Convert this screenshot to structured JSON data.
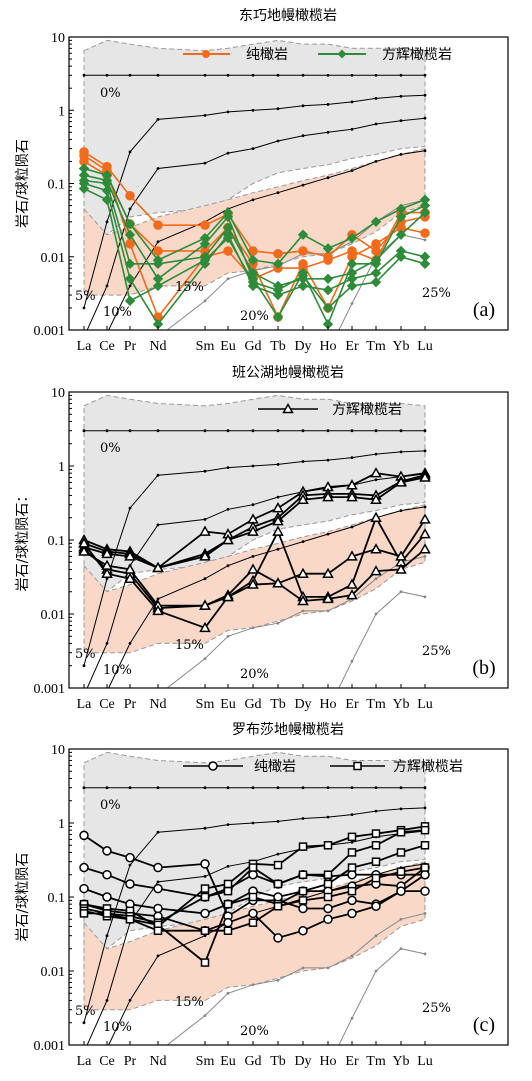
{
  "figure": {
    "elements": [
      "La",
      "Ce",
      "Pr",
      "Nd",
      "Sm",
      "Eu",
      "Gd",
      "Tb",
      "Dy",
      "Ho",
      "Er",
      "Tm",
      "Yb",
      "Lu"
    ],
    "y_label": "岩石/球粒陨石",
    "y_label_b": "岩石/球粒陨石：",
    "melt_labels": [
      "0%",
      "5%",
      "10%",
      "15%",
      "20%",
      "25%"
    ],
    "colors": {
      "dunite_a": "#f26a1b",
      "harzburgite_a": "#2e8b3a",
      "pink_field": "#f9d8c8",
      "gray_field": "#e6e6e6"
    }
  },
  "chart_data": [
    {
      "type": "line",
      "title": "东巧地幔橄榄岩",
      "panel_label": "(a)",
      "log_y": true,
      "ylim": [
        0.001,
        10
      ],
      "y_ticks": [
        "0.001",
        "0.01",
        "0.1",
        "1",
        "10"
      ],
      "categories": [
        "La",
        "Ce",
        "Pr",
        "Nd",
        "Sm",
        "Eu",
        "Gd",
        "Tb",
        "Dy",
        "Ho",
        "Er",
        "Tm",
        "Yb",
        "Lu"
      ],
      "legend": [
        {
          "name": "纯橄岩",
          "marker": "circle-filled",
          "color": "#f26a1b"
        },
        {
          "name": "方辉橄榄岩",
          "marker": "diamond-filled",
          "color": "#2e8b3a"
        }
      ],
      "series": [
        {
          "group": "纯橄岩",
          "values": [
            0.27,
            0.17,
            0.068,
            0.027,
            0.027,
            0.038,
            0.012,
            0.011,
            0.012,
            0.01,
            0.02,
            0.012,
            0.03,
            0.035
          ]
        },
        {
          "group": "纯橄岩",
          "values": [
            0.2,
            0.13,
            0.028,
            0.012,
            0.012,
            0.025,
            0.008,
            0.0015,
            0.008,
            0.002,
            0.01,
            0.015,
            0.025,
            0.021
          ]
        },
        {
          "group": "纯橄岩",
          "values": [
            0.24,
            0.15,
            0.015,
            0.0015,
            0.01,
            0.012,
            0.005,
            0.007,
            0.007,
            0.009,
            0.012,
            0.009,
            0.04,
            0.04
          ]
        },
        {
          "group": "方辉橄榄岩",
          "values": [
            0.16,
            0.13,
            0.028,
            0.009,
            0.018,
            0.04,
            0.009,
            0.008,
            0.02,
            0.013,
            0.018,
            0.03,
            0.045,
            0.06
          ]
        },
        {
          "group": "方辉橄榄岩",
          "values": [
            0.13,
            0.11,
            0.02,
            0.005,
            0.015,
            0.035,
            0.005,
            0.0015,
            0.006,
            0.0012,
            0.008,
            0.008,
            0.035,
            0.05
          ]
        },
        {
          "group": "方辉橄榄岩",
          "values": [
            0.11,
            0.1,
            0.008,
            0.008,
            0.01,
            0.025,
            0.006,
            0.004,
            0.005,
            0.005,
            0.006,
            0.009,
            0.02,
            0.04
          ]
        },
        {
          "group": "方辉橄榄岩",
          "values": [
            0.1,
            0.08,
            0.005,
            0.0012,
            0.008,
            0.02,
            0.004,
            0.003,
            0.004,
            0.0035,
            0.005,
            0.006,
            0.012,
            0.01
          ]
        },
        {
          "group": "方辉橄榄岩",
          "values": [
            0.085,
            0.06,
            0.0025,
            0.004,
            0.009,
            0.018,
            0.0045,
            0.0035,
            0.0055,
            0.002,
            0.004,
            0.0045,
            0.01,
            0.008
          ]
        }
      ],
      "melt_curves_present": true
    },
    {
      "type": "line",
      "title": "班公湖地幔橄榄岩",
      "panel_label": "(b)",
      "log_y": true,
      "ylim": [
        0.001,
        10
      ],
      "y_ticks": [
        "0.001",
        "0.01",
        "0.1",
        "1",
        "10"
      ],
      "categories": [
        "La",
        "Ce",
        "Pr",
        "Nd",
        "Sm",
        "Eu",
        "Gd",
        "Tb",
        "Dy",
        "Ho",
        "Er",
        "Tm",
        "Yb",
        "Lu"
      ],
      "legend": [
        {
          "name": "方辉橄榄岩",
          "marker": "triangle-open",
          "color": "#000000"
        }
      ],
      "series": [
        {
          "values": [
            0.1,
            0.075,
            0.07,
            0.042,
            0.13,
            0.12,
            0.19,
            0.27,
            0.45,
            0.52,
            0.55,
            0.8,
            0.72,
            0.8
          ]
        },
        {
          "values": [
            0.09,
            0.07,
            0.065,
            0.042,
            0.065,
            0.1,
            0.15,
            0.2,
            0.4,
            0.42,
            0.42,
            0.4,
            0.62,
            0.75
          ]
        },
        {
          "values": [
            0.08,
            0.065,
            0.06,
            0.042,
            0.06,
            0.1,
            0.13,
            0.18,
            0.35,
            0.38,
            0.38,
            0.35,
            0.6,
            0.7
          ]
        },
        {
          "values": [
            0.075,
            0.04,
            0.035,
            0.012,
            0.013,
            0.017,
            0.028,
            0.13,
            0.017,
            0.017,
            0.025,
            0.2,
            0.05,
            0.12
          ]
        },
        {
          "values": [
            0.07,
            0.045,
            0.04,
            0.013,
            0.013,
            0.018,
            0.04,
            0.026,
            0.035,
            0.035,
            0.06,
            0.075,
            0.06,
            0.19
          ]
        },
        {
          "values": [
            0.09,
            0.035,
            0.03,
            0.011,
            0.0065,
            0.017,
            0.025,
            0.026,
            0.015,
            0.016,
            0.018,
            0.038,
            0.04,
            0.075
          ]
        }
      ],
      "melt_curves_present": true
    },
    {
      "type": "line",
      "title": "罗布莎地幔橄榄岩",
      "panel_label": "(c)",
      "log_y": true,
      "ylim": [
        0.001,
        10
      ],
      "y_ticks": [
        "0.001",
        "0.01",
        "0.1",
        "1",
        "10"
      ],
      "categories": [
        "La",
        "Ce",
        "Pr",
        "Nd",
        "Sm",
        "Eu",
        "Gd",
        "Tb",
        "Dy",
        "Ho",
        "Er",
        "Tm",
        "Yb",
        "Lu"
      ],
      "legend": [
        {
          "name": "纯橄岩",
          "marker": "circle-open",
          "color": "#000000"
        },
        {
          "name": "方辉橄榄岩",
          "marker": "square-open",
          "color": "#000000"
        }
      ],
      "series": [
        {
          "group": "纯橄岩",
          "values": [
            0.68,
            0.42,
            0.34,
            0.25,
            0.28,
            0.055,
            0.09,
            0.09,
            0.07,
            0.07,
            0.09,
            0.08,
            0.12,
            0.12
          ]
        },
        {
          "group": "纯橄岩",
          "values": [
            0.25,
            0.2,
            0.15,
            0.13,
            0.1,
            0.13,
            0.2,
            0.15,
            0.2,
            0.19,
            0.2,
            0.2,
            0.2,
            0.2
          ]
        },
        {
          "group": "纯橄岩",
          "values": [
            0.13,
            0.1,
            0.08,
            0.07,
            0.06,
            0.08,
            0.12,
            0.1,
            0.12,
            0.12,
            0.14,
            0.15,
            0.14,
            0.25
          ]
        },
        {
          "group": "纯橄岩",
          "values": [
            0.08,
            0.065,
            0.06,
            0.055,
            0.035,
            0.045,
            0.06,
            0.028,
            0.035,
            0.05,
            0.06,
            0.075,
            0.12,
            0.2
          ]
        },
        {
          "group": "方辉橄榄岩",
          "values": [
            0.08,
            0.07,
            0.065,
            0.04,
            0.13,
            0.15,
            0.28,
            0.27,
            0.48,
            0.5,
            0.65,
            0.72,
            0.8,
            0.9
          ]
        },
        {
          "group": "方辉橄榄岩",
          "values": [
            0.07,
            0.06,
            0.055,
            0.045,
            0.1,
            0.12,
            0.25,
            0.15,
            0.2,
            0.2,
            0.4,
            0.5,
            0.75,
            0.8
          ]
        },
        {
          "group": "方辉橄榄岩",
          "values": [
            0.065,
            0.055,
            0.05,
            0.042,
            0.013,
            0.08,
            0.1,
            0.08,
            0.12,
            0.15,
            0.25,
            0.3,
            0.4,
            0.5
          ]
        },
        {
          "group": "方辉橄榄岩",
          "values": [
            0.06,
            0.06,
            0.05,
            0.035,
            0.035,
            0.035,
            0.045,
            0.075,
            0.09,
            0.1,
            0.12,
            0.18,
            0.22,
            0.25
          ]
        }
      ],
      "melt_curves_present": true
    }
  ],
  "melt_model": {
    "curves": [
      {
        "label": "0%",
        "values": [
          3,
          3,
          3,
          3,
          3,
          3,
          3,
          3,
          3,
          3,
          3,
          3,
          3,
          3
        ]
      },
      {
        "label": "5%",
        "values": [
          0.002,
          0.03,
          0.27,
          0.75,
          0.85,
          0.95,
          1.0,
          1.05,
          1.15,
          1.2,
          1.3,
          1.45,
          1.55,
          1.6
        ]
      },
      {
        "label": "10%",
        "values": [
          0.0008,
          0.004,
          0.045,
          0.16,
          0.19,
          0.26,
          0.3,
          0.38,
          0.45,
          0.5,
          0.55,
          0.65,
          0.72,
          0.78
        ]
      },
      {
        "label": "15%",
        "values": [
          0.0005,
          0.0009,
          0.004,
          0.016,
          0.03,
          0.045,
          0.06,
          0.075,
          0.095,
          0.12,
          0.15,
          0.2,
          0.25,
          0.28
        ]
      },
      {
        "label": "20%",
        "values": [
          0.0004,
          0.0005,
          0.0006,
          0.0008,
          0.0025,
          0.005,
          0.0065,
          0.0075,
          0.011,
          0.011,
          0.016,
          0.03,
          0.05,
          0.06
        ]
      },
      {
        "label": "25%",
        "values": [
          0.0003,
          0.0003,
          0.0003,
          0.0003,
          0.0003,
          0.0004,
          0.0004,
          0.0004,
          0.0004,
          0.0005,
          0.0023,
          0.01,
          0.02,
          0.017
        ]
      }
    ],
    "gray_field": {
      "upper": [
        6.5,
        9,
        8,
        7,
        6.5,
        7,
        8,
        9,
        8,
        8,
        7,
        7,
        7,
        6.5
      ],
      "lower": [
        0.008,
        0.02,
        0.035,
        0.04,
        0.045,
        0.06,
        0.1,
        0.14,
        0.16,
        0.18,
        0.22,
        0.25,
        0.3,
        0.32
      ]
    },
    "pink_field": {
      "upper": [
        0.045,
        0.02,
        0.025,
        0.035,
        0.05,
        0.06,
        0.075,
        0.09,
        0.11,
        0.13,
        0.16,
        0.2,
        0.25,
        0.3
      ],
      "lower": [
        0.003,
        0.003,
        0.003,
        0.004,
        0.004,
        0.006,
        0.0065,
        0.008,
        0.01,
        0.011,
        0.015,
        0.022,
        0.04,
        0.05
      ]
    }
  }
}
